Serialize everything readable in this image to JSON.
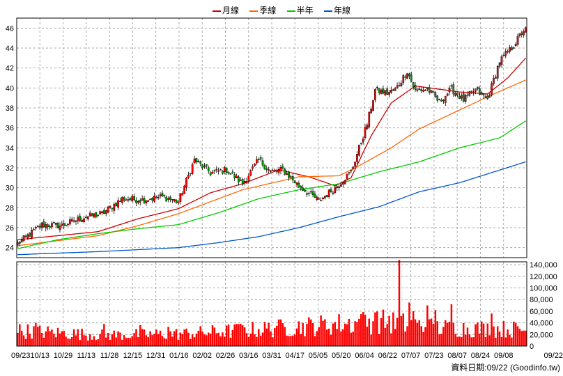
{
  "legend": [
    {
      "label": "月線",
      "color": "#cc0000"
    },
    {
      "label": "季線",
      "color": "#ff6600"
    },
    {
      "label": "半年",
      "color": "#00cc00"
    },
    {
      "label": "年線",
      "color": "#0055cc"
    }
  ],
  "footer": {
    "label": "資料日期:",
    "date": "09/22",
    "source": "(Goodinfo.tw)"
  },
  "chart_data": {
    "type": "candlestick",
    "price_axis": {
      "ticks": [
        24,
        26,
        28,
        30,
        32,
        34,
        36,
        38,
        40,
        42,
        44,
        46
      ],
      "ylim": [
        23,
        47
      ]
    },
    "volume_axis": {
      "ticks": [
        "0",
        "20,000",
        "40,000",
        "60,000",
        "80,000",
        "100,000",
        "120,000",
        "140,000"
      ],
      "ylim": [
        0,
        145000
      ]
    },
    "x_ticks": [
      "09/23",
      "10/13",
      "10/29",
      "11/13",
      "11/28",
      "12/15",
      "12/31",
      "01/16",
      "02/02",
      "02/26",
      "03/16",
      "03/31",
      "04/17",
      "05/05",
      "05/20",
      "06/04",
      "06/22",
      "07/07",
      "07/23",
      "08/07",
      "08/24",
      "09/08",
      "09/22"
    ],
    "close_anchors": [
      [
        0,
        24.4
      ],
      [
        12,
        26.3
      ],
      [
        22,
        26.2
      ],
      [
        32,
        27.0
      ],
      [
        42,
        27.4
      ],
      [
        52,
        28.9
      ],
      [
        62,
        28.8
      ],
      [
        72,
        29.1
      ],
      [
        80,
        28.6
      ],
      [
        88,
        32.8
      ],
      [
        96,
        31.5
      ],
      [
        104,
        31.8
      ],
      [
        112,
        30.4
      ],
      [
        120,
        32.8
      ],
      [
        126,
        31.6
      ],
      [
        132,
        31.8
      ],
      [
        140,
        30.2
      ],
      [
        150,
        28.7
      ],
      [
        158,
        30.0
      ],
      [
        166,
        31.6
      ],
      [
        174,
        36.4
      ],
      [
        178,
        39.8
      ],
      [
        184,
        39.5
      ],
      [
        188,
        39.8
      ],
      [
        194,
        41.7
      ],
      [
        198,
        39.7
      ],
      [
        204,
        39.9
      ],
      [
        210,
        38.6
      ],
      [
        216,
        39.9
      ],
      [
        222,
        38.8
      ],
      [
        228,
        39.8
      ],
      [
        234,
        38.9
      ],
      [
        240,
        42.7
      ],
      [
        246,
        44.0
      ],
      [
        252,
        45.8
      ]
    ],
    "ma_anchors": {
      "month": [
        [
          0,
          24.8
        ],
        [
          40,
          25.6
        ],
        [
          60,
          26.9
        ],
        [
          80,
          27.9
        ],
        [
          96,
          29.5
        ],
        [
          112,
          30.4
        ],
        [
          130,
          31.8
        ],
        [
          145,
          31.1
        ],
        [
          158,
          30.2
        ],
        [
          166,
          31.0
        ],
        [
          176,
          35.2
        ],
        [
          186,
          38.5
        ],
        [
          198,
          40.2
        ],
        [
          220,
          39.6
        ],
        [
          234,
          39.4
        ],
        [
          244,
          41.0
        ],
        [
          253,
          43.0
        ]
      ],
      "quarter": [
        [
          0,
          24.2
        ],
        [
          40,
          25.2
        ],
        [
          60,
          26.2
        ],
        [
          80,
          27.4
        ],
        [
          96,
          28.6
        ],
        [
          112,
          29.8
        ],
        [
          140,
          31.1
        ],
        [
          160,
          31.2
        ],
        [
          170,
          32.2
        ],
        [
          186,
          34.0
        ],
        [
          200,
          35.9
        ],
        [
          218,
          37.6
        ],
        [
          236,
          39.3
        ],
        [
          253,
          40.8
        ]
      ],
      "half": [
        [
          0,
          23.9
        ],
        [
          20,
          24.8
        ],
        [
          40,
          25.4
        ],
        [
          60,
          25.9
        ],
        [
          80,
          26.3
        ],
        [
          100,
          27.5
        ],
        [
          120,
          28.9
        ],
        [
          140,
          29.8
        ],
        [
          160,
          30.4
        ],
        [
          180,
          31.6
        ],
        [
          200,
          32.6
        ],
        [
          220,
          34.0
        ],
        [
          240,
          35.0
        ],
        [
          253,
          36.7
        ]
      ],
      "year": [
        [
          0,
          23.3
        ],
        [
          40,
          23.6
        ],
        [
          80,
          24.0
        ],
        [
          100,
          24.5
        ],
        [
          120,
          25.1
        ],
        [
          140,
          26.0
        ],
        [
          160,
          27.1
        ],
        [
          180,
          28.1
        ],
        [
          200,
          29.6
        ],
        [
          220,
          30.5
        ],
        [
          253,
          32.6
        ]
      ]
    },
    "volume_anchors": [
      [
        0,
        28000
      ],
      [
        40,
        20000
      ],
      [
        80,
        22000
      ],
      [
        120,
        30000
      ],
      [
        160,
        40000
      ],
      [
        180,
        45000
      ],
      [
        210,
        33000
      ],
      [
        253,
        30000
      ]
    ],
    "volume_spikes": [
      [
        9,
        40000
      ],
      [
        43,
        38000
      ],
      [
        61,
        36000
      ],
      [
        75,
        33000
      ],
      [
        110,
        38000
      ],
      [
        129,
        35000
      ],
      [
        171,
        55000
      ],
      [
        178,
        58000
      ],
      [
        185,
        52000
      ],
      [
        190,
        148000
      ],
      [
        195,
        75000
      ],
      [
        197,
        60000
      ],
      [
        204,
        70000
      ],
      [
        208,
        62000
      ],
      [
        216,
        72000
      ],
      [
        236,
        56000
      ]
    ],
    "n_days": 254,
    "colors": {
      "up": "#ff0000",
      "down": "#009900",
      "volume": "#ff0000",
      "grid": "#a8a8a8"
    }
  }
}
